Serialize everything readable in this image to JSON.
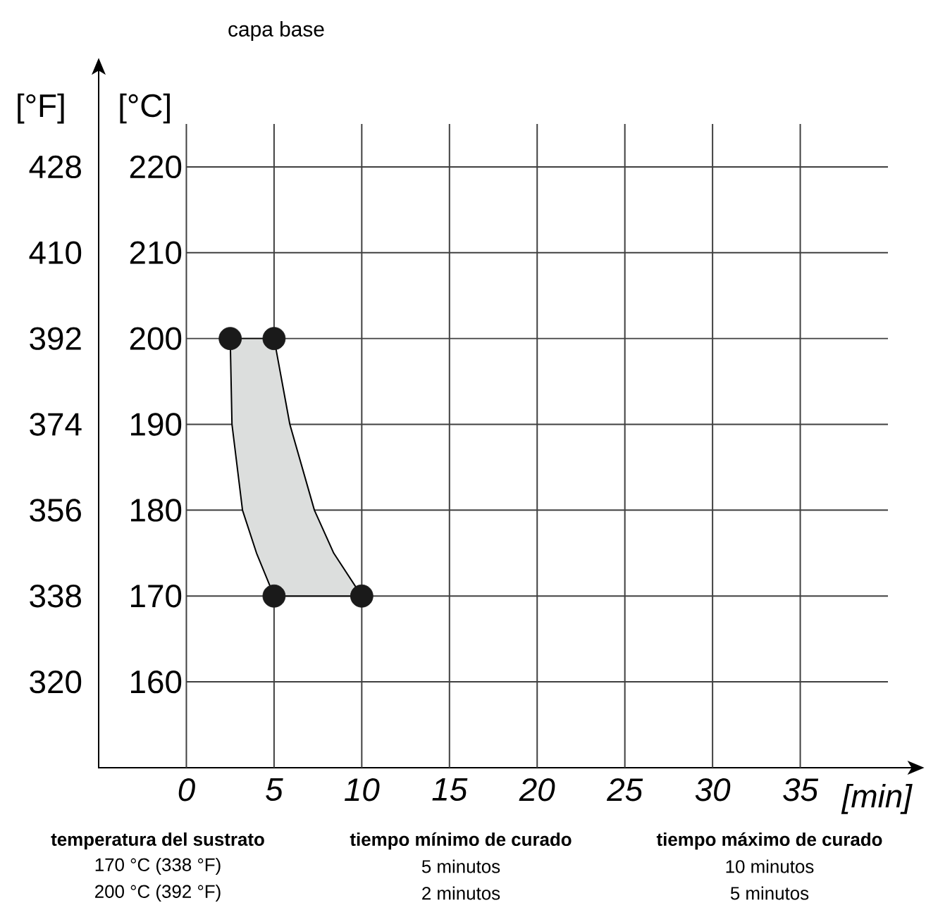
{
  "chart_data": {
    "type": "scatter",
    "title": "capa base",
    "xlabel": "[min]",
    "ylabel": "[°C]",
    "y2label": "[°F]",
    "xlim": [
      -5,
      40
    ],
    "xticks": [
      0,
      5,
      10,
      15,
      20,
      25,
      30,
      35
    ],
    "ylim": [
      150,
      225
    ],
    "yticks": [
      160,
      170,
      180,
      190,
      200,
      210,
      220
    ],
    "y2lim": [
      302,
      437
    ],
    "y2ticks": [
      320,
      338,
      356,
      374,
      392,
      410,
      428
    ],
    "grid": true,
    "series": [
      {
        "type": "area",
        "color": "#dcdedd",
        "x": [
          2.5,
          5,
          5.9,
          7.3,
          8.4,
          10,
          5,
          4.0,
          3.2,
          2.6,
          2.5
        ],
        "values": [
          200,
          200,
          190,
          180,
          175,
          170,
          170,
          175,
          180,
          190,
          200
        ]
      },
      {
        "color": "#1a1a1a",
        "marker": "circle",
        "x": [
          2.5,
          5,
          5,
          10
        ],
        "values": [
          200,
          200,
          170,
          170
        ]
      }
    ],
    "annotations": [
      "temperatura del sustrato",
      "170 °C (338 °F)",
      "200 °C (392 °F)",
      "tiempo mínimo de curado",
      "5 minutos",
      "2 minutos",
      "tiempo máximo de curado",
      "10 minutos",
      "5 minutos"
    ]
  }
}
